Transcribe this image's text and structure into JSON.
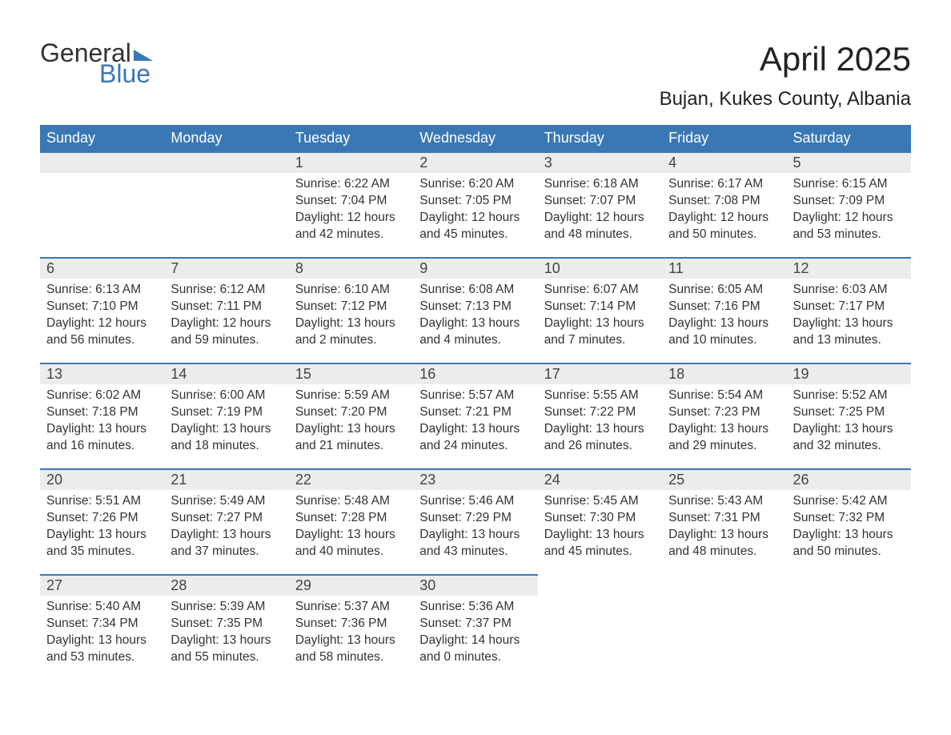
{
  "brand": {
    "text_top": "General",
    "text_bottom": "Blue"
  },
  "colors": {
    "header_bg": "#3a78b5",
    "header_text": "#ffffff",
    "daynum_bg": "#ececec",
    "daynum_border": "#3a78b5",
    "body_bg": "#ffffff",
    "text": "#333333",
    "brand_blue": "#3a78b5"
  },
  "typography": {
    "month_title_fontsize": 42,
    "location_fontsize": 24,
    "dayheader_fontsize": 18,
    "daynum_fontsize": 18,
    "body_fontsize": 15.5,
    "font_family": "Arial"
  },
  "title": "April 2025",
  "location": "Bujan, Kukes County, Albania",
  "day_headers": [
    "Sunday",
    "Monday",
    "Tuesday",
    "Wednesday",
    "Thursday",
    "Friday",
    "Saturday"
  ],
  "weeks": [
    [
      null,
      null,
      {
        "n": "1",
        "sr": "Sunrise: 6:22 AM",
        "ss": "Sunset: 7:04 PM",
        "d1": "Daylight: 12 hours",
        "d2": "and 42 minutes."
      },
      {
        "n": "2",
        "sr": "Sunrise: 6:20 AM",
        "ss": "Sunset: 7:05 PM",
        "d1": "Daylight: 12 hours",
        "d2": "and 45 minutes."
      },
      {
        "n": "3",
        "sr": "Sunrise: 6:18 AM",
        "ss": "Sunset: 7:07 PM",
        "d1": "Daylight: 12 hours",
        "d2": "and 48 minutes."
      },
      {
        "n": "4",
        "sr": "Sunrise: 6:17 AM",
        "ss": "Sunset: 7:08 PM",
        "d1": "Daylight: 12 hours",
        "d2": "and 50 minutes."
      },
      {
        "n": "5",
        "sr": "Sunrise: 6:15 AM",
        "ss": "Sunset: 7:09 PM",
        "d1": "Daylight: 12 hours",
        "d2": "and 53 minutes."
      }
    ],
    [
      {
        "n": "6",
        "sr": "Sunrise: 6:13 AM",
        "ss": "Sunset: 7:10 PM",
        "d1": "Daylight: 12 hours",
        "d2": "and 56 minutes."
      },
      {
        "n": "7",
        "sr": "Sunrise: 6:12 AM",
        "ss": "Sunset: 7:11 PM",
        "d1": "Daylight: 12 hours",
        "d2": "and 59 minutes."
      },
      {
        "n": "8",
        "sr": "Sunrise: 6:10 AM",
        "ss": "Sunset: 7:12 PM",
        "d1": "Daylight: 13 hours",
        "d2": "and 2 minutes."
      },
      {
        "n": "9",
        "sr": "Sunrise: 6:08 AM",
        "ss": "Sunset: 7:13 PM",
        "d1": "Daylight: 13 hours",
        "d2": "and 4 minutes."
      },
      {
        "n": "10",
        "sr": "Sunrise: 6:07 AM",
        "ss": "Sunset: 7:14 PM",
        "d1": "Daylight: 13 hours",
        "d2": "and 7 minutes."
      },
      {
        "n": "11",
        "sr": "Sunrise: 6:05 AM",
        "ss": "Sunset: 7:16 PM",
        "d1": "Daylight: 13 hours",
        "d2": "and 10 minutes."
      },
      {
        "n": "12",
        "sr": "Sunrise: 6:03 AM",
        "ss": "Sunset: 7:17 PM",
        "d1": "Daylight: 13 hours",
        "d2": "and 13 minutes."
      }
    ],
    [
      {
        "n": "13",
        "sr": "Sunrise: 6:02 AM",
        "ss": "Sunset: 7:18 PM",
        "d1": "Daylight: 13 hours",
        "d2": "and 16 minutes."
      },
      {
        "n": "14",
        "sr": "Sunrise: 6:00 AM",
        "ss": "Sunset: 7:19 PM",
        "d1": "Daylight: 13 hours",
        "d2": "and 18 minutes."
      },
      {
        "n": "15",
        "sr": "Sunrise: 5:59 AM",
        "ss": "Sunset: 7:20 PM",
        "d1": "Daylight: 13 hours",
        "d2": "and 21 minutes."
      },
      {
        "n": "16",
        "sr": "Sunrise: 5:57 AM",
        "ss": "Sunset: 7:21 PM",
        "d1": "Daylight: 13 hours",
        "d2": "and 24 minutes."
      },
      {
        "n": "17",
        "sr": "Sunrise: 5:55 AM",
        "ss": "Sunset: 7:22 PM",
        "d1": "Daylight: 13 hours",
        "d2": "and 26 minutes."
      },
      {
        "n": "18",
        "sr": "Sunrise: 5:54 AM",
        "ss": "Sunset: 7:23 PM",
        "d1": "Daylight: 13 hours",
        "d2": "and 29 minutes."
      },
      {
        "n": "19",
        "sr": "Sunrise: 5:52 AM",
        "ss": "Sunset: 7:25 PM",
        "d1": "Daylight: 13 hours",
        "d2": "and 32 minutes."
      }
    ],
    [
      {
        "n": "20",
        "sr": "Sunrise: 5:51 AM",
        "ss": "Sunset: 7:26 PM",
        "d1": "Daylight: 13 hours",
        "d2": "and 35 minutes."
      },
      {
        "n": "21",
        "sr": "Sunrise: 5:49 AM",
        "ss": "Sunset: 7:27 PM",
        "d1": "Daylight: 13 hours",
        "d2": "and 37 minutes."
      },
      {
        "n": "22",
        "sr": "Sunrise: 5:48 AM",
        "ss": "Sunset: 7:28 PM",
        "d1": "Daylight: 13 hours",
        "d2": "and 40 minutes."
      },
      {
        "n": "23",
        "sr": "Sunrise: 5:46 AM",
        "ss": "Sunset: 7:29 PM",
        "d1": "Daylight: 13 hours",
        "d2": "and 43 minutes."
      },
      {
        "n": "24",
        "sr": "Sunrise: 5:45 AM",
        "ss": "Sunset: 7:30 PM",
        "d1": "Daylight: 13 hours",
        "d2": "and 45 minutes."
      },
      {
        "n": "25",
        "sr": "Sunrise: 5:43 AM",
        "ss": "Sunset: 7:31 PM",
        "d1": "Daylight: 13 hours",
        "d2": "and 48 minutes."
      },
      {
        "n": "26",
        "sr": "Sunrise: 5:42 AM",
        "ss": "Sunset: 7:32 PM",
        "d1": "Daylight: 13 hours",
        "d2": "and 50 minutes."
      }
    ],
    [
      {
        "n": "27",
        "sr": "Sunrise: 5:40 AM",
        "ss": "Sunset: 7:34 PM",
        "d1": "Daylight: 13 hours",
        "d2": "and 53 minutes."
      },
      {
        "n": "28",
        "sr": "Sunrise: 5:39 AM",
        "ss": "Sunset: 7:35 PM",
        "d1": "Daylight: 13 hours",
        "d2": "and 55 minutes."
      },
      {
        "n": "29",
        "sr": "Sunrise: 5:37 AM",
        "ss": "Sunset: 7:36 PM",
        "d1": "Daylight: 13 hours",
        "d2": "and 58 minutes."
      },
      {
        "n": "30",
        "sr": "Sunrise: 5:36 AM",
        "ss": "Sunset: 7:37 PM",
        "d1": "Daylight: 14 hours",
        "d2": "and 0 minutes."
      },
      null,
      null,
      null
    ]
  ]
}
